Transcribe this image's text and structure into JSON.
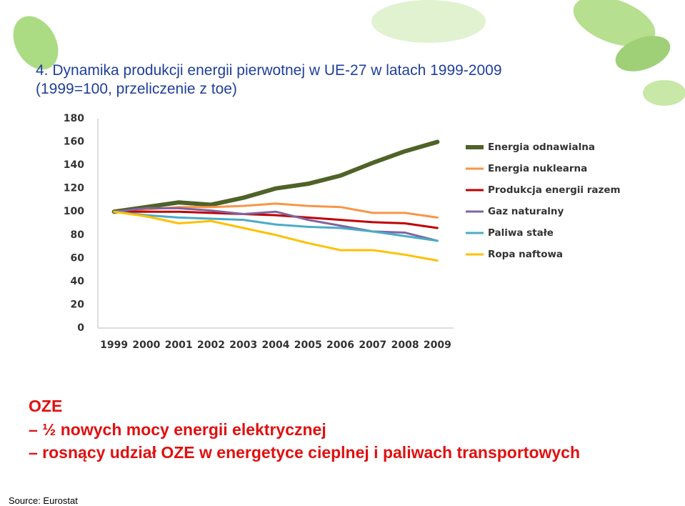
{
  "title": "4. Dynamika produkcji energii pierwotnej w UE-27 w latach 1999-2009 (1999=100, przeliczenie z toe)",
  "bullets": [
    "OZE",
    "– ½ nowych mocy energii elektrycznej",
    "– rosnący udział OZE w energetyce cieplnej i paliwach transportowych"
  ],
  "source": "Source: Eurostat",
  "chart_data": {
    "type": "line",
    "categories": [
      "1999",
      "2000",
      "2001",
      "2002",
      "2003",
      "2004",
      "2005",
      "2006",
      "2007",
      "2008",
      "2009"
    ],
    "ylim": [
      0,
      180
    ],
    "yticks": [
      0,
      20,
      40,
      60,
      80,
      100,
      120,
      140,
      160,
      180
    ],
    "grid": false,
    "legend": "right",
    "series": [
      {
        "name": "Energia odnawialna",
        "color": "#4f6228",
        "values": [
          100,
          104,
          108,
          106,
          112,
          120,
          124,
          131,
          142,
          152,
          160
        ]
      },
      {
        "name": "Energia nuklearna",
        "color": "#f79646",
        "values": [
          100,
          102,
          104,
          104,
          105,
          107,
          105,
          104,
          99,
          99,
          95
        ]
      },
      {
        "name": "Produkcja energii razem",
        "color": "#c00000",
        "values": [
          100,
          100,
          100,
          99,
          98,
          97,
          95,
          93,
          91,
          90,
          86
        ]
      },
      {
        "name": "Gaz naturalny",
        "color": "#8064a2",
        "values": [
          100,
          103,
          103,
          101,
          98,
          100,
          93,
          88,
          83,
          82,
          75
        ]
      },
      {
        "name": "Paliwa stałe",
        "color": "#4bacc6",
        "values": [
          100,
          97,
          95,
          94,
          93,
          89,
          87,
          86,
          83,
          79,
          75
        ]
      },
      {
        "name": "Ropa naftowa",
        "color": "#ffc000",
        "values": [
          100,
          96,
          90,
          92,
          86,
          80,
          73,
          67,
          67,
          63,
          58
        ]
      }
    ]
  }
}
